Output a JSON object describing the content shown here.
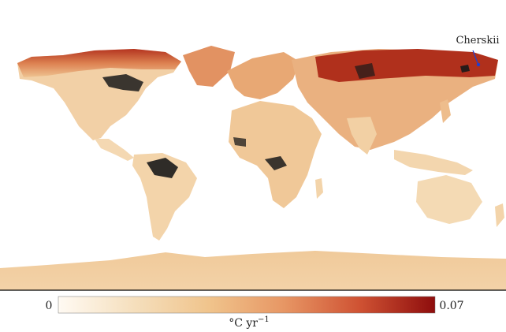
{
  "annotation": {
    "text": "Cherskii",
    "marker_color": "#1f3fd0"
  },
  "colorbar": {
    "min_label": "0",
    "max_label": "0.07",
    "unit_base": "°C yr",
    "unit_exp": "−1",
    "stops": [
      "#fffaf3",
      "#f5dfbd",
      "#f0c48c",
      "#e79664",
      "#cf5233",
      "#8e0d0d"
    ]
  },
  "colors": {
    "ocean": "#ffffff",
    "land_low": "#f6ddb6",
    "land_mid": "#eec391",
    "land_warm": "#e39a67",
    "land_hot": "#c9472d",
    "land_max": "#8e0d0d",
    "nodata": "#1a1a1a"
  }
}
